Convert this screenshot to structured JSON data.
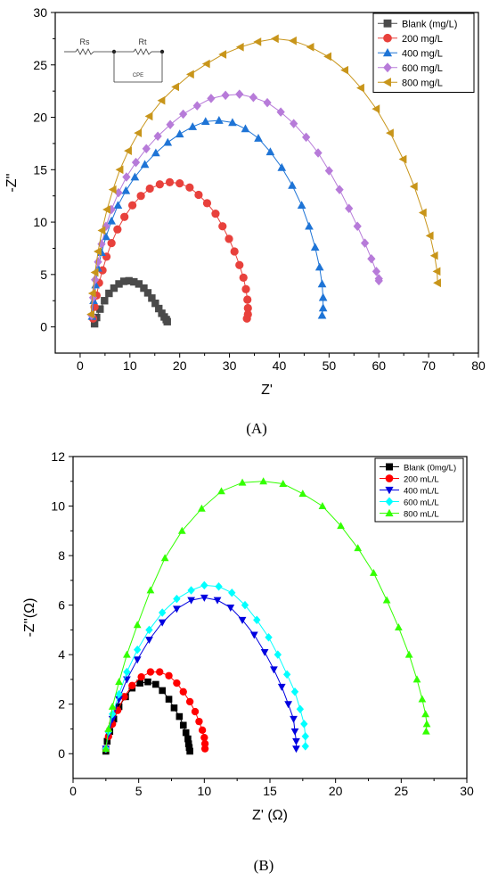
{
  "figure": {
    "panel_labels": [
      "(A)",
      "(B)"
    ]
  },
  "chart_data": [
    {
      "type": "scatter",
      "panel": "(A)",
      "xlabel": "Z'",
      "ylabel": "-Z''",
      "xlim": [
        -5,
        80
      ],
      "ylim": [
        -2.5,
        30
      ],
      "xticks": [
        0,
        10,
        20,
        30,
        40,
        50,
        60,
        70,
        80
      ],
      "yticks": [
        0,
        5,
        10,
        15,
        20,
        25,
        30
      ],
      "grid": false,
      "legend_position": "top-right",
      "inset": {
        "labels": [
          "Rs",
          "Rt",
          "CPE"
        ]
      },
      "series": [
        {
          "name": "Blank (mg/L)",
          "marker": "square",
          "color": "#4a4a4a",
          "x": [
            2.9,
            3.3,
            4.0,
            4.9,
            5.8,
            6.8,
            7.8,
            8.8,
            9.8,
            10.8,
            11.8,
            12.8,
            13.6,
            14.4,
            15.1,
            15.8,
            16.4,
            16.9,
            17.3,
            17.5
          ],
          "y": [
            0.3,
            0.9,
            1.7,
            2.5,
            3.2,
            3.7,
            4.1,
            4.35,
            4.4,
            4.3,
            4.1,
            3.7,
            3.25,
            2.75,
            2.25,
            1.75,
            1.3,
            0.95,
            0.7,
            0.5
          ]
        },
        {
          "name": "200 mg/L",
          "marker": "circle",
          "color": "#e8413c",
          "x": [
            2.6,
            2.9,
            3.3,
            3.8,
            4.5,
            5.3,
            6.3,
            7.5,
            8.9,
            10.5,
            12.2,
            14.0,
            16.0,
            18.0,
            20.0,
            22.0,
            23.8,
            25.5,
            27.2,
            28.6,
            29.9,
            31.0,
            32.0,
            32.8,
            33.3,
            33.6,
            33.7,
            33.7,
            33.5
          ],
          "y": [
            0.8,
            1.9,
            3.0,
            4.2,
            5.4,
            6.7,
            8.0,
            9.3,
            10.5,
            11.6,
            12.5,
            13.2,
            13.6,
            13.8,
            13.7,
            13.3,
            12.6,
            11.8,
            10.8,
            9.6,
            8.4,
            7.2,
            5.9,
            4.7,
            3.6,
            2.6,
            1.8,
            1.2,
            0.8
          ]
        },
        {
          "name": "400 mg/L",
          "marker": "triangle",
          "color": "#1e74d6",
          "x": [
            2.4,
            2.7,
            3.1,
            3.6,
            4.3,
            5.2,
            6.3,
            7.6,
            9.2,
            11.0,
            13.0,
            15.2,
            17.6,
            20.0,
            22.6,
            25.2,
            27.9,
            30.6,
            33.2,
            35.8,
            38.2,
            40.5,
            42.6,
            44.5,
            46.0,
            47.2,
            48.1,
            48.6,
            48.8,
            48.8,
            48.6
          ],
          "y": [
            1.0,
            2.5,
            4.0,
            5.6,
            7.1,
            8.6,
            10.1,
            11.6,
            13.0,
            14.3,
            15.5,
            16.6,
            17.6,
            18.4,
            19.1,
            19.6,
            19.7,
            19.5,
            18.9,
            18.0,
            16.7,
            15.2,
            13.5,
            11.6,
            9.6,
            7.6,
            5.7,
            4.1,
            2.8,
            1.8,
            1.1
          ]
        },
        {
          "name": "600 mg/L",
          "marker": "diamond",
          "color": "#b77bd9",
          "x": [
            2.3,
            2.6,
            3.0,
            3.6,
            4.3,
            5.2,
            6.3,
            7.7,
            9.3,
            11.2,
            13.3,
            15.6,
            18.1,
            20.7,
            23.5,
            26.3,
            29.2,
            32.0,
            34.8,
            37.6,
            40.3,
            42.9,
            45.4,
            47.8,
            50.0,
            52.1,
            54.0,
            55.7,
            57.2,
            58.5,
            59.5,
            60.0,
            60.0
          ],
          "y": [
            1.1,
            2.8,
            4.5,
            6.2,
            7.9,
            9.6,
            11.2,
            12.8,
            14.3,
            15.7,
            17.0,
            18.2,
            19.3,
            20.3,
            21.1,
            21.8,
            22.1,
            22.2,
            21.9,
            21.4,
            20.5,
            19.4,
            18.1,
            16.6,
            14.9,
            13.1,
            11.3,
            9.6,
            8.0,
            6.5,
            5.3,
            4.6,
            4.4
          ]
        },
        {
          "name": "800 mg/L",
          "marker": "triangle-left",
          "color": "#c8951a",
          "x": [
            2.2,
            2.5,
            3.0,
            3.6,
            4.4,
            5.4,
            6.6,
            8.0,
            9.7,
            11.7,
            13.9,
            16.4,
            19.2,
            22.2,
            25.4,
            28.7,
            32.2,
            35.7,
            39.2,
            42.8,
            46.3,
            49.8,
            53.2,
            56.4,
            59.5,
            62.3,
            64.9,
            67.1,
            68.9,
            70.3,
            71.2,
            71.7,
            71.8
          ],
          "y": [
            1.2,
            3.2,
            5.2,
            7.2,
            9.2,
            11.2,
            13.1,
            15.0,
            16.8,
            18.5,
            20.1,
            21.6,
            22.9,
            24.1,
            25.1,
            26.0,
            26.7,
            27.2,
            27.5,
            27.3,
            26.7,
            25.8,
            24.5,
            22.8,
            20.8,
            18.5,
            16.0,
            13.4,
            10.9,
            8.7,
            6.8,
            5.3,
            4.2
          ]
        }
      ]
    },
    {
      "type": "scatter",
      "panel": "(B)",
      "xlabel": "Z' (Ω)",
      "ylabel": "-Z''(Ω)",
      "xlim": [
        0,
        30
      ],
      "ylim": [
        -1,
        12
      ],
      "xticks": [
        0,
        5,
        10,
        15,
        20,
        25,
        30
      ],
      "yticks": [
        0,
        2,
        4,
        6,
        8,
        10,
        12
      ],
      "grid": false,
      "legend_position": "top-right",
      "series": [
        {
          "name": "Blank (0mg/L)",
          "marker": "square",
          "color": "#000000",
          "x": [
            2.5,
            2.6,
            2.8,
            3.1,
            3.5,
            4.0,
            4.5,
            5.1,
            5.7,
            6.3,
            6.8,
            7.3,
            7.7,
            8.1,
            8.4,
            8.6,
            8.75,
            8.8,
            8.85,
            8.9
          ],
          "y": [
            0.1,
            0.5,
            0.9,
            1.4,
            1.9,
            2.3,
            2.65,
            2.85,
            2.9,
            2.8,
            2.55,
            2.2,
            1.85,
            1.5,
            1.15,
            0.85,
            0.6,
            0.4,
            0.25,
            0.1
          ]
        },
        {
          "name": "200 mL/L",
          "marker": "circle",
          "color": "#ff0000",
          "x": [
            2.5,
            2.7,
            3.0,
            3.4,
            3.9,
            4.5,
            5.2,
            5.9,
            6.6,
            7.3,
            7.9,
            8.4,
            8.9,
            9.3,
            9.6,
            9.85,
            10.0,
            10.05,
            10.05
          ],
          "y": [
            0.2,
            0.7,
            1.2,
            1.75,
            2.3,
            2.75,
            3.1,
            3.3,
            3.3,
            3.15,
            2.85,
            2.5,
            2.1,
            1.7,
            1.3,
            0.95,
            0.65,
            0.4,
            0.2
          ]
        },
        {
          "name": "400 mL/L",
          "marker": "triangle-down",
          "color": "#0000e0",
          "x": [
            2.5,
            2.7,
            3.0,
            3.5,
            4.1,
            4.9,
            5.8,
            6.8,
            7.9,
            9.0,
            10.0,
            11.0,
            12.0,
            12.9,
            13.8,
            14.6,
            15.3,
            15.9,
            16.4,
            16.8,
            16.9,
            17.0,
            17.0
          ],
          "y": [
            0.2,
            0.8,
            1.4,
            2.2,
            3.0,
            3.8,
            4.6,
            5.3,
            5.85,
            6.2,
            6.3,
            6.2,
            5.9,
            5.4,
            4.8,
            4.1,
            3.4,
            2.7,
            2.0,
            1.4,
            0.9,
            0.5,
            0.2
          ]
        },
        {
          "name": "600 mL/L",
          "marker": "diamond",
          "color": "#00ffff",
          "x": [
            2.5,
            2.7,
            3.0,
            3.5,
            4.1,
            4.9,
            5.8,
            6.8,
            7.9,
            9.0,
            10.0,
            11.1,
            12.1,
            13.1,
            14.0,
            14.9,
            15.6,
            16.3,
            16.9,
            17.3,
            17.6,
            17.7,
            17.7
          ],
          "y": [
            0.2,
            0.9,
            1.6,
            2.4,
            3.3,
            4.2,
            5.0,
            5.7,
            6.25,
            6.6,
            6.8,
            6.75,
            6.5,
            6.0,
            5.4,
            4.7,
            4.0,
            3.2,
            2.5,
            1.8,
            1.2,
            0.7,
            0.3
          ]
        },
        {
          "name": "800 mL/L",
          "marker": "triangle",
          "color": "#33ff00",
          "x": [
            2.5,
            2.7,
            3.0,
            3.5,
            4.1,
            4.9,
            5.9,
            7.0,
            8.3,
            9.8,
            11.3,
            12.9,
            14.5,
            16.0,
            17.5,
            19.0,
            20.4,
            21.7,
            22.9,
            23.9,
            24.8,
            25.6,
            26.2,
            26.6,
            26.85,
            26.95,
            26.9
          ],
          "y": [
            0.2,
            1.0,
            1.9,
            2.9,
            4.0,
            5.2,
            6.6,
            7.9,
            9.0,
            9.9,
            10.6,
            10.95,
            11.0,
            10.9,
            10.5,
            10.0,
            9.2,
            8.3,
            7.3,
            6.2,
            5.1,
            4.0,
            3.0,
            2.2,
            1.6,
            1.2,
            0.9
          ]
        }
      ]
    }
  ]
}
